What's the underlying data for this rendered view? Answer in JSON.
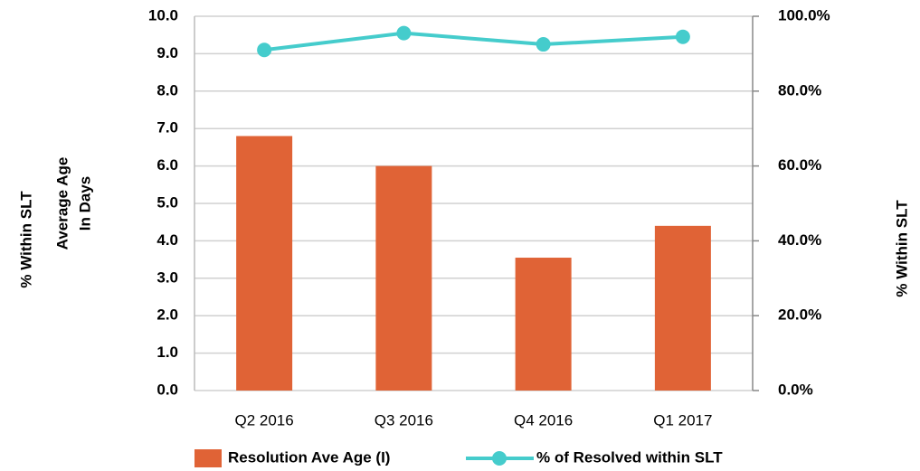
{
  "chart_data": {
    "type": "bar_line",
    "ylabel_outer": "% Within SLT",
    "ylabel": [
      "Average Age",
      "In Days"
    ],
    "y2label": "% Within SLT",
    "categories": [
      "Q2 2016",
      "Q3 2016",
      "Q4 2016",
      "Q1 2017"
    ],
    "series": [
      {
        "name": "Resolution Ave Age (I)",
        "color": "#e06336",
        "type": "bar",
        "values": [
          6.8,
          6.0,
          3.55,
          4.4
        ]
      },
      {
        "name": "% of Resolved within SLT",
        "color": "#45cccc",
        "type": "line",
        "axis": "y2",
        "values": [
          91,
          95.5,
          92.5,
          94.5
        ]
      }
    ],
    "ylim": [
      0,
      10
    ],
    "yticks": [
      {
        "value": 0,
        "label": "0.0"
      },
      {
        "value": 1,
        "label": "1.0"
      },
      {
        "value": 2,
        "label": "2.0"
      },
      {
        "value": 3,
        "label": "3.0"
      },
      {
        "value": 4,
        "label": "4.0"
      },
      {
        "value": 5,
        "label": "5.0"
      },
      {
        "value": 6,
        "label": "6.0"
      },
      {
        "value": 7,
        "label": "7.0"
      },
      {
        "value": 8,
        "label": "8.0"
      },
      {
        "value": 9,
        "label": "9.0"
      },
      {
        "value": 10,
        "label": "10.0"
      }
    ],
    "y2lim": [
      0,
      100
    ],
    "y2ticks": [
      {
        "value": 0,
        "label": "0.0%"
      },
      {
        "value": 20,
        "label": "20.0%"
      },
      {
        "value": 40,
        "label": "40.0%"
      },
      {
        "value": 60,
        "label": "60.0%"
      },
      {
        "value": 80,
        "label": "80.0%"
      },
      {
        "value": 100,
        "label": "100.0%"
      }
    ],
    "grid": true,
    "legend": "bottom"
  }
}
